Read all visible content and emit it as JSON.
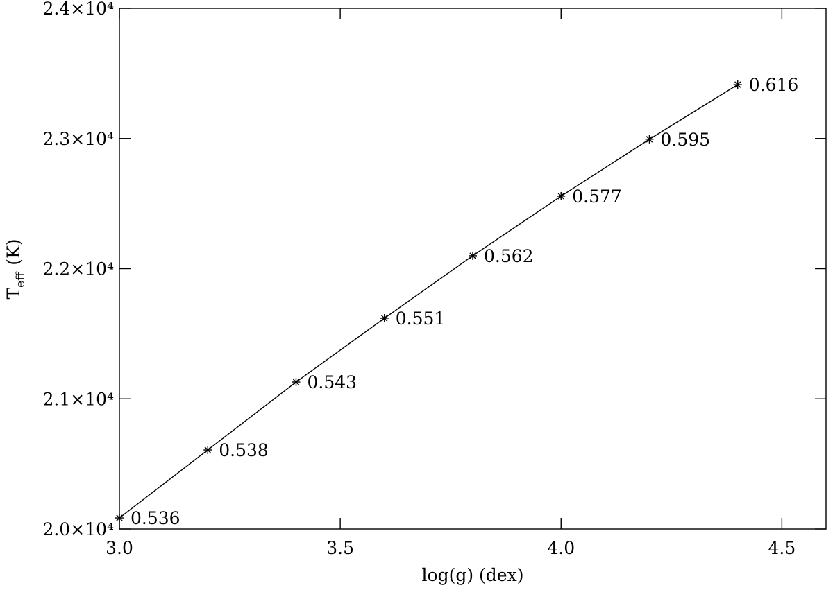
{
  "chart_data": {
    "type": "line",
    "xlabel": "log(g) (dex)",
    "ylabel_parts": [
      "T",
      "eff",
      "(K)"
    ],
    "x": [
      3.0,
      3.2,
      3.4,
      3.6,
      3.8,
      4.0,
      4.2,
      4.4
    ],
    "series": [
      {
        "color": "#000000",
        "values": [
          20085,
          20607,
          21129,
          21619,
          22099,
          22557,
          22994,
          23414
        ],
        "point_labels": [
          "0.536",
          "0.538",
          "0.543",
          "0.551",
          "0.562",
          "0.577",
          "0.595",
          "0.616"
        ]
      }
    ],
    "xlim": [
      3.0,
      4.6
    ],
    "ylim": [
      20000,
      24000
    ],
    "xticks": [
      {
        "value": 3.0,
        "label": "3.0"
      },
      3.5,
      {
        "value": 4.0,
        "label": "4.0"
      },
      4.5
    ],
    "yticks": [
      {
        "value": 20000,
        "label": "2.0×10⁴"
      },
      {
        "value": 21000,
        "label": "2.1×10⁴"
      },
      {
        "value": 22000,
        "label": "2.2×10⁴"
      },
      {
        "value": 23000,
        "label": "2.3×10⁴"
      },
      {
        "value": 24000,
        "label": "2.4×10⁴"
      }
    ]
  }
}
